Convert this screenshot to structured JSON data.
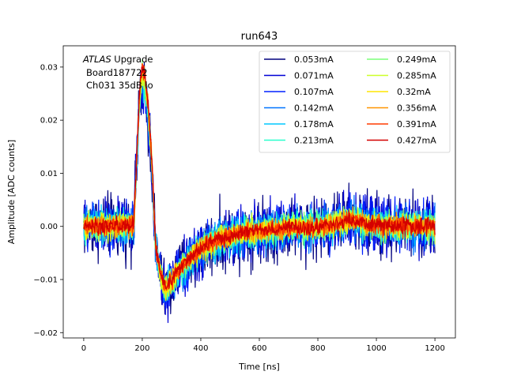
{
  "chart_data": {
    "type": "line",
    "title": "run643",
    "xlabel": "Time [ns]",
    "ylabel": "Amplitude [ADC counts]",
    "xlim": [
      -70,
      1270
    ],
    "ylim": [
      -0.021,
      0.034
    ],
    "xticks": [
      0,
      200,
      400,
      600,
      800,
      1000,
      1200
    ],
    "yticks": [
      -0.02,
      -0.01,
      0.0,
      0.01,
      0.02,
      0.03
    ],
    "xtick_labels": [
      "0",
      "200",
      "400",
      "600",
      "800",
      "1000",
      "1200"
    ],
    "ytick_labels": [
      "−0.02",
      "−0.01",
      "0.00",
      "0.01",
      "0.02",
      "0.03"
    ],
    "grid": false,
    "legend_position": "top-right",
    "legend_columns": 2,
    "annotation": {
      "line1_italic": "ATLAS",
      "line1_rest": " Upgrade",
      "line2": "Board187722",
      "line3": "Ch031 35dB lo"
    },
    "series": [
      {
        "name": "0.053mA",
        "color": "#00007f",
        "pulse_peak": 0.0255,
        "undershoot": -0.0128,
        "noise_amplitude": 0.0048
      },
      {
        "name": "0.071mA",
        "color": "#0000d5",
        "pulse_peak": 0.0262,
        "undershoot": -0.0126,
        "noise_amplitude": 0.0042
      },
      {
        "name": "0.107mA",
        "color": "#0020ff",
        "pulse_peak": 0.0268,
        "undershoot": -0.0124,
        "noise_amplitude": 0.0036
      },
      {
        "name": "0.142mA",
        "color": "#0074ff",
        "pulse_peak": 0.0272,
        "undershoot": -0.0122,
        "noise_amplitude": 0.003
      },
      {
        "name": "0.178mA",
        "color": "#00c8ff",
        "pulse_peak": 0.0276,
        "undershoot": -0.0121,
        "noise_amplitude": 0.0026
      },
      {
        "name": "0.213mA",
        "color": "#29ffcd",
        "pulse_peak": 0.0279,
        "undershoot": -0.012,
        "noise_amplitude": 0.0023
      },
      {
        "name": "0.249mA",
        "color": "#7cff79",
        "pulse_peak": 0.0282,
        "undershoot": -0.0119,
        "noise_amplitude": 0.0021
      },
      {
        "name": "0.285mA",
        "color": "#cdff29",
        "pulse_peak": 0.0285,
        "undershoot": -0.0118,
        "noise_amplitude": 0.0019
      },
      {
        "name": "0.32mA",
        "color": "#ffe500",
        "pulse_peak": 0.0288,
        "undershoot": -0.0117,
        "noise_amplitude": 0.0017
      },
      {
        "name": "0.356mA",
        "color": "#ff9400",
        "pulse_peak": 0.0291,
        "undershoot": -0.0116,
        "noise_amplitude": 0.0015
      },
      {
        "name": "0.391mA",
        "color": "#ff3b00",
        "pulse_peak": 0.0294,
        "undershoot": -0.0115,
        "noise_amplitude": 0.0013
      },
      {
        "name": "0.427mA",
        "color": "#d40000",
        "pulse_peak": 0.0298,
        "undershoot": -0.0114,
        "noise_amplitude": 0.0012
      }
    ],
    "x_range": [
      0,
      1200
    ],
    "pulse_peak_time": 200,
    "undershoot_time": 285,
    "bump_time": 910,
    "bump_amplitude": 0.0012
  }
}
